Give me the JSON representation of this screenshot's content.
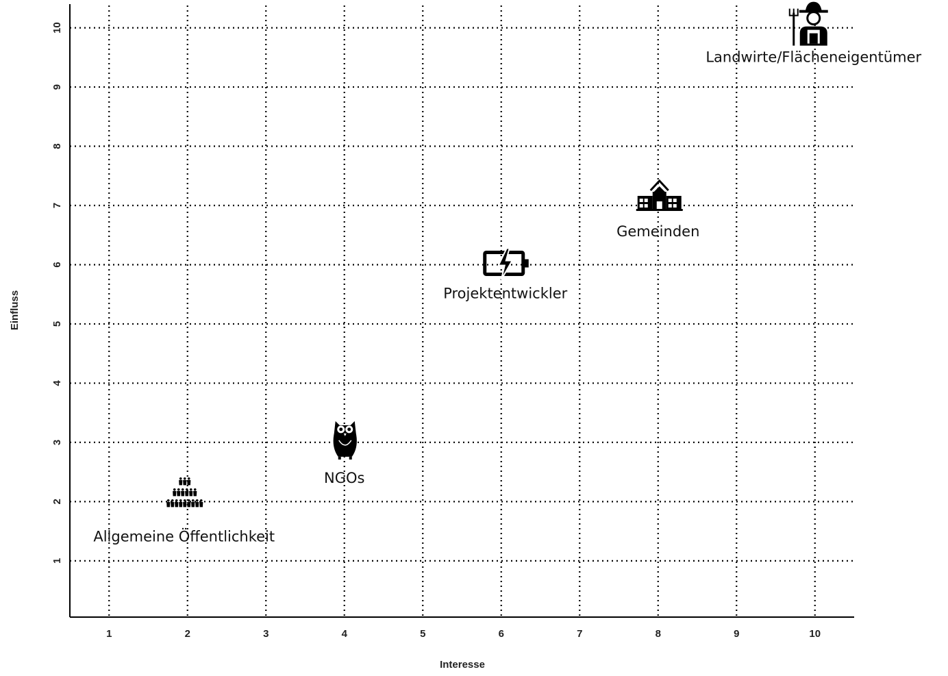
{
  "chart_data": {
    "type": "scatter",
    "title": "",
    "xlabel": "Interesse",
    "ylabel": "Einfluss",
    "xlim": [
      0.5,
      10.5
    ],
    "ylim": [
      0.05,
      10.4
    ],
    "xticks": [
      1,
      2,
      3,
      4,
      5,
      6,
      7,
      8,
      9,
      10
    ],
    "yticks": [
      1,
      2,
      3,
      4,
      5,
      6,
      7,
      8,
      9,
      10
    ],
    "grid": true,
    "grid_style": "dotted",
    "points": [
      {
        "label": "Landwirte/Flächeneigentümer",
        "x": 10,
        "y": 10,
        "icon": "farmer-icon"
      },
      {
        "label": "Gemeinden",
        "x": 8,
        "y": 7,
        "icon": "town-hall-icon"
      },
      {
        "label": "Projektentwickler",
        "x": 6,
        "y": 6,
        "icon": "battery-charging-icon"
      },
      {
        "label": "NGOs",
        "x": 4,
        "y": 3,
        "icon": "owl-icon"
      },
      {
        "label": "Allgemeine Öffentlichkeit",
        "x": 2,
        "y": 2,
        "icon": "crowd-icon"
      }
    ]
  }
}
